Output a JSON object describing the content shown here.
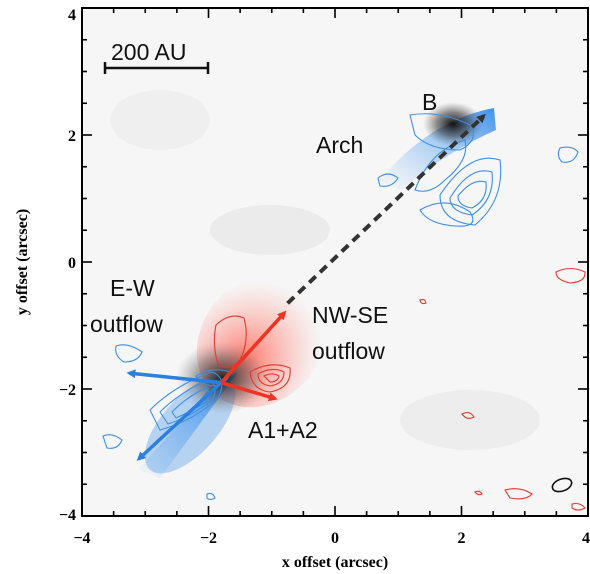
{
  "chart_data": {
    "type": "scatter",
    "title": "",
    "xlabel": "x offset (arcsec)",
    "ylabel": "y offset (arcsec)",
    "xlim": [
      -4,
      4
    ],
    "ylim": [
      -4,
      4
    ],
    "xticks": [
      -4,
      -2,
      0,
      2,
      4
    ],
    "yticks": [
      -4,
      -2,
      0,
      2,
      4
    ],
    "x_tick_labels": [
      "−4",
      "−2",
      "0",
      "2",
      "4"
    ],
    "y_tick_labels": [
      "−4",
      "−2",
      "0",
      "2",
      "4"
    ],
    "grid": false,
    "scale_bar_label": "200 AU",
    "sources": [
      {
        "label": "B",
        "x": 1.8,
        "y": 2.2
      },
      {
        "label": "A1+A2",
        "x": -1.8,
        "y": -1.9
      }
    ],
    "annotations": [
      "Arch",
      "E-W outflow",
      "NW-SE outflow"
    ],
    "arrows": [
      {
        "kind": "E-W outflow",
        "color": "#2a7fe0",
        "from": [
          -1.8,
          -1.9
        ],
        "to": [
          -3.25,
          -1.75
        ]
      },
      {
        "kind": "E-W outflow",
        "color": "#2a7fe0",
        "from": [
          -1.8,
          -1.9
        ],
        "to": [
          -3.1,
          -3.1
        ]
      },
      {
        "kind": "NW-SE outflow",
        "color": "#ee3322",
        "from": [
          -1.8,
          -1.9
        ],
        "to": [
          -0.8,
          -0.8
        ]
      },
      {
        "kind": "NW-SE outflow",
        "color": "#ee3322",
        "from": [
          -1.8,
          -1.9
        ],
        "to": [
          -0.95,
          -2.15
        ]
      },
      {
        "kind": "A to B",
        "color": "#333333",
        "from": [
          -0.75,
          -0.65
        ],
        "to": [
          2.35,
          2.3
        ]
      }
    ],
    "colors": {
      "blueshifted": "#3d8fe5",
      "redshifted": "#e23a2e",
      "dust": "#222222"
    }
  }
}
